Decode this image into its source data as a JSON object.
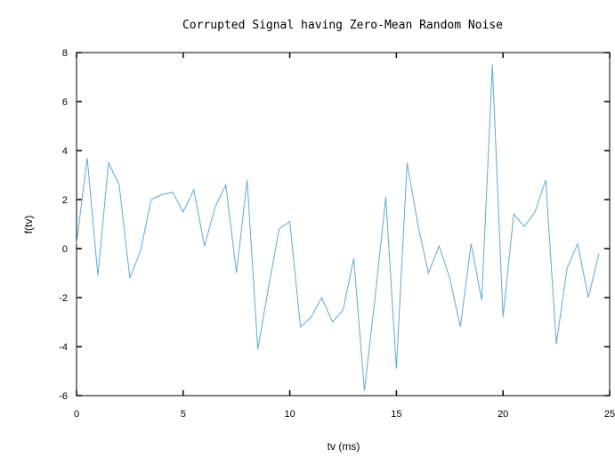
{
  "chart_data": {
    "type": "line",
    "title": "Corrupted Signal having Zero-Mean Random Noise",
    "xlabel": "tv (ms)",
    "ylabel": "f(tv)",
    "xlim": [
      0,
      25
    ],
    "ylim": [
      -6,
      8
    ],
    "xticks": [
      0,
      5,
      10,
      15,
      20,
      25
    ],
    "yticks": [
      -6,
      -4,
      -2,
      0,
      2,
      4,
      6,
      8
    ],
    "grid": false,
    "series": [
      {
        "color": "#5aa9de",
        "x": [
          0,
          0.5,
          1,
          1.5,
          2,
          2.5,
          3,
          3.5,
          4,
          4.5,
          5,
          5.5,
          6,
          6.5,
          7,
          7.5,
          8,
          8.5,
          9,
          9.5,
          10,
          10.5,
          11,
          11.5,
          12,
          12.5,
          13,
          13.5,
          14,
          14.5,
          15,
          15.5,
          16,
          16.5,
          17,
          17.5,
          18,
          18.5,
          19,
          19.5,
          20,
          20.5,
          21,
          21.5,
          22,
          22.5,
          23,
          23.5,
          24,
          24.5
        ],
        "y": [
          0.2,
          3.7,
          -1.1,
          3.5,
          2.6,
          -1.2,
          -0.1,
          2.0,
          2.2,
          2.3,
          1.5,
          2.4,
          0.1,
          1.7,
          2.6,
          -1.0,
          2.8,
          -4.1,
          -1.6,
          0.8,
          1.1,
          -3.2,
          -2.8,
          -2.0,
          -3.0,
          -2.5,
          -0.4,
          -5.8,
          -2.0,
          2.1,
          -4.9,
          3.5,
          1.0,
          -1.0,
          0.1,
          -1.2,
          -3.2,
          0.2,
          -2.1,
          7.5,
          -2.8,
          1.4,
          0.9,
          1.5,
          2.8,
          -3.9,
          -0.8,
          0.2,
          -2.0,
          -0.2
        ]
      }
    ]
  }
}
